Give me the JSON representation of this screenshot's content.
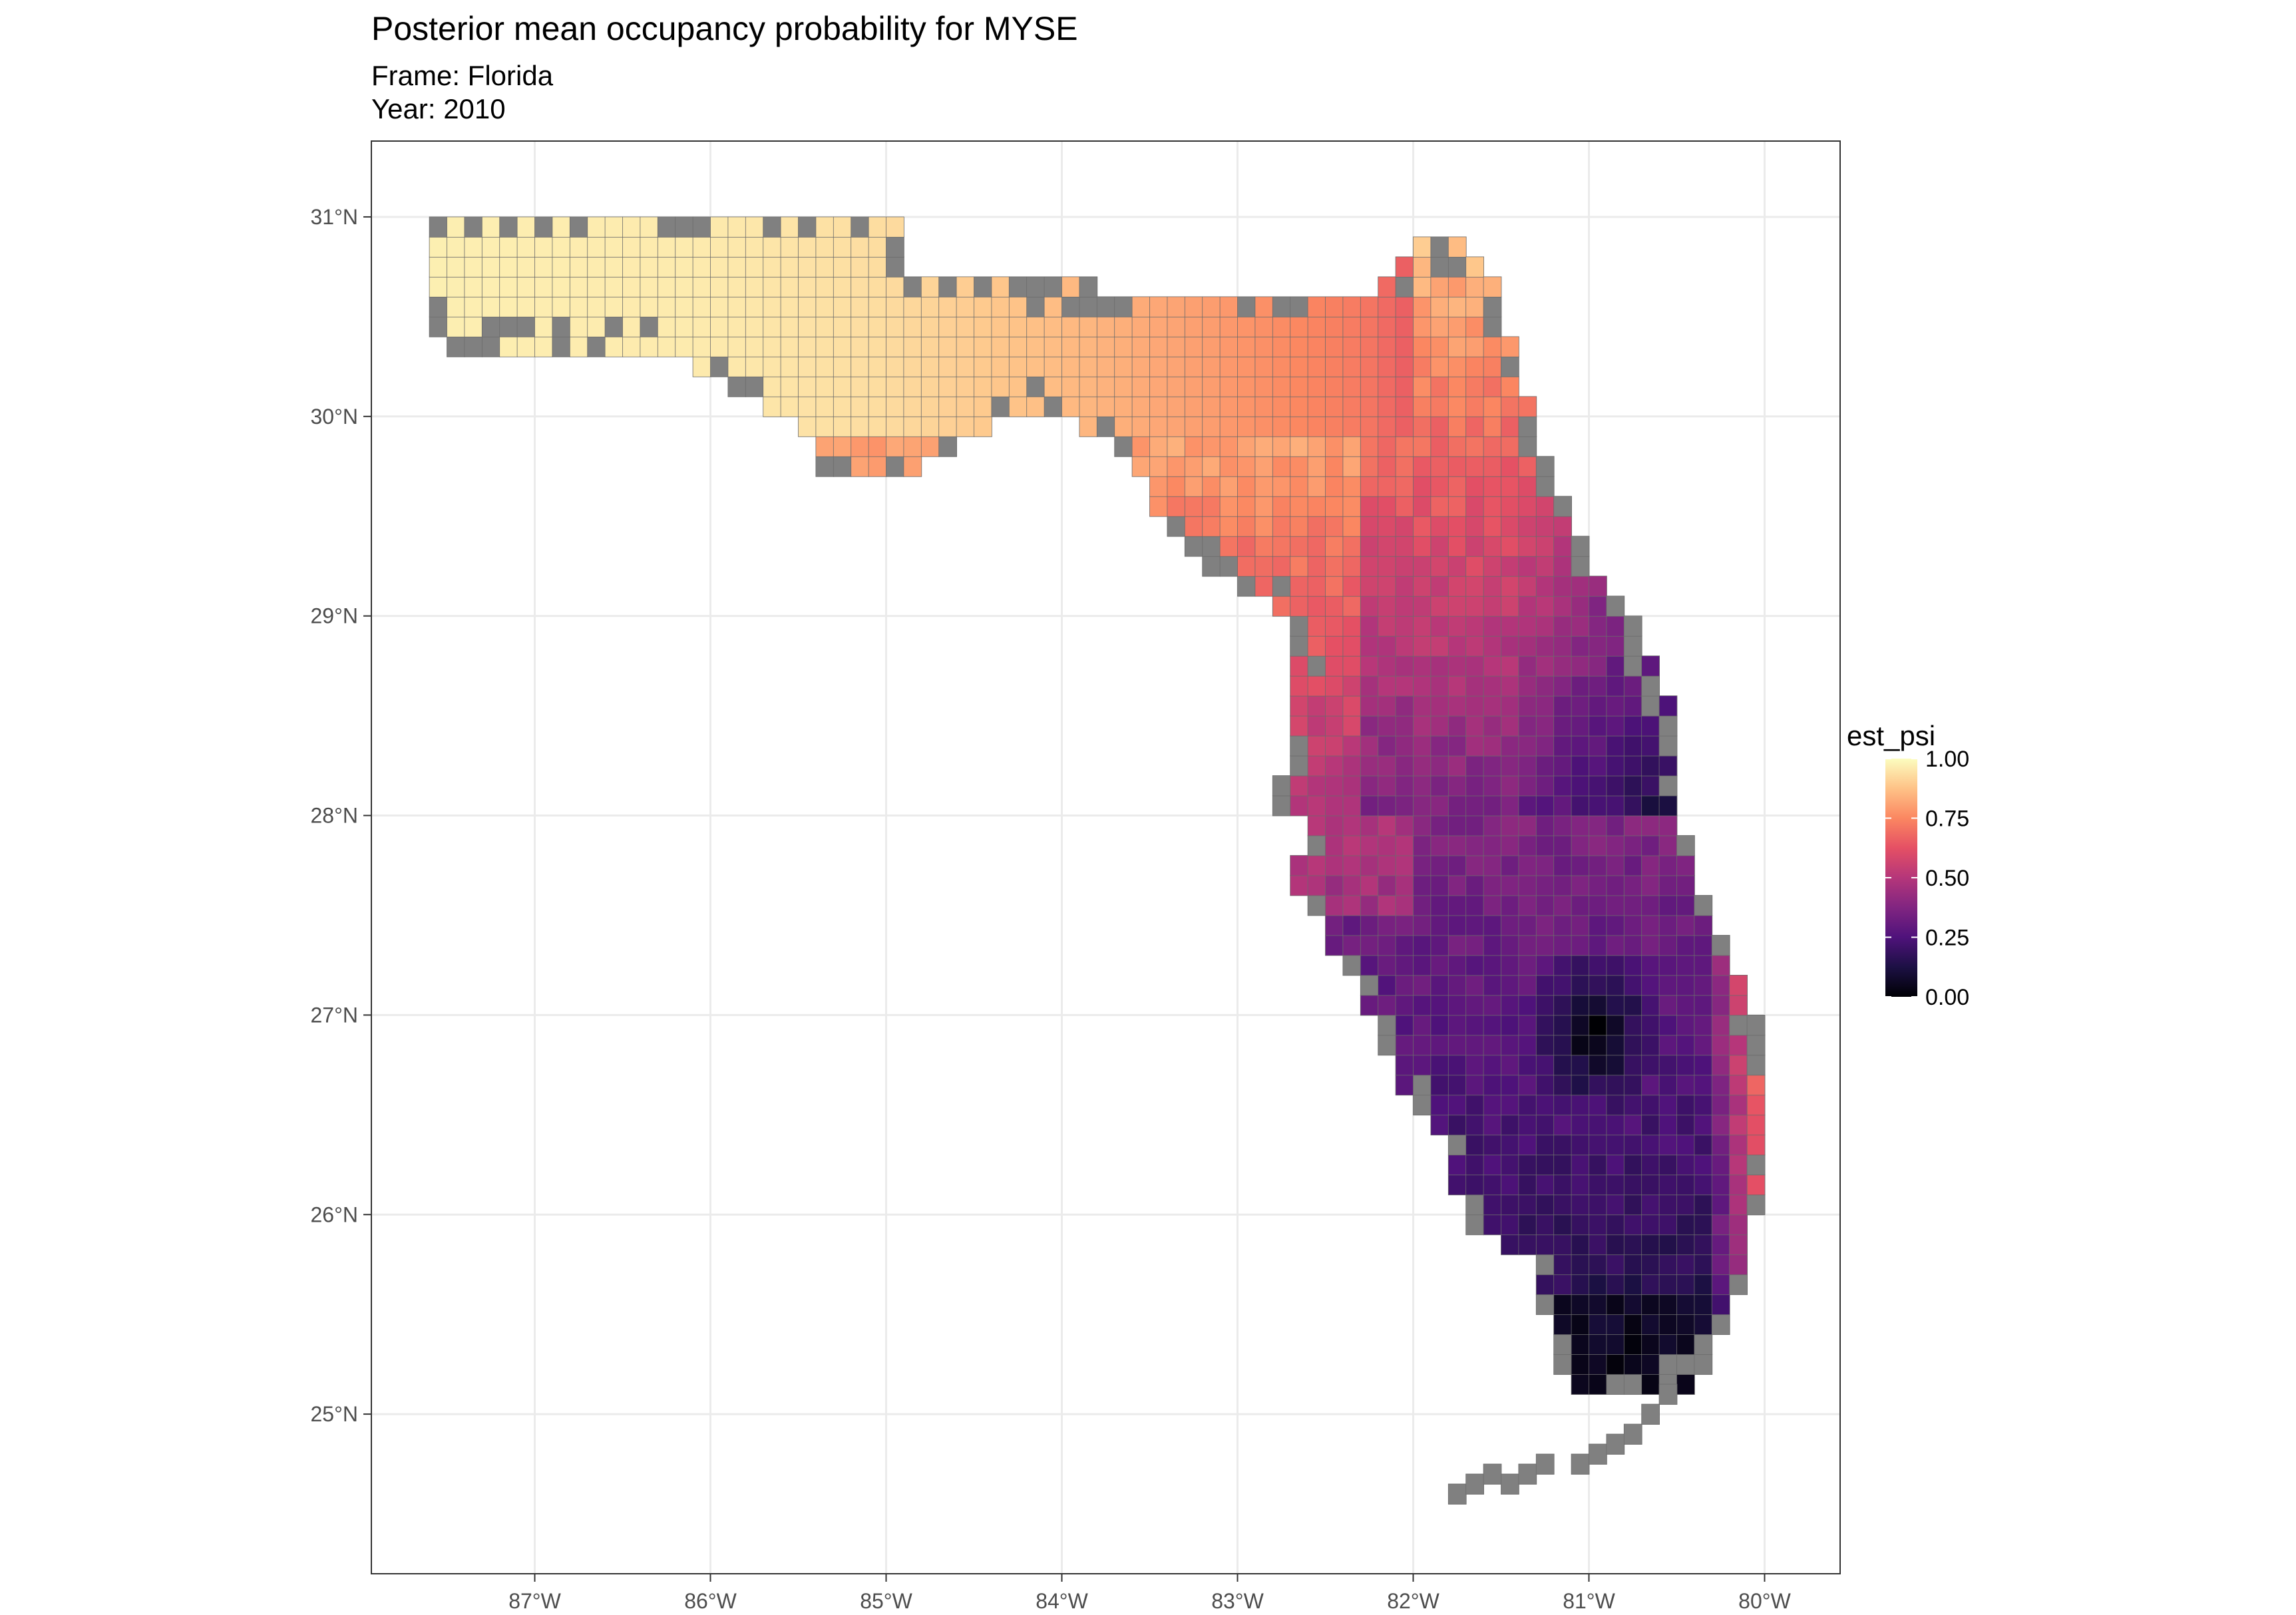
{
  "title": "Posterior mean occupancy probability for MYSE",
  "subtitle_frame": "Frame: Florida",
  "subtitle_year": "Year: 2010",
  "chart_data": {
    "type": "heatmap",
    "title": "Posterior mean occupancy probability for MYSE",
    "subtitle": [
      "Frame: Florida",
      "Year: 2010"
    ],
    "x_axis": {
      "ticks": [
        -87,
        -86,
        -85,
        -84,
        -83,
        -82,
        -81,
        -80
      ],
      "tick_labels": [
        "87°W",
        "86°W",
        "85°W",
        "84°W",
        "83°W",
        "82°W",
        "81°W",
        "80°W"
      ],
      "range": [
        -87.93,
        -79.57
      ]
    },
    "y_axis": {
      "ticks": [
        25,
        26,
        27,
        28,
        29,
        30,
        31
      ],
      "tick_labels": [
        "25°N",
        "26°N",
        "27°N",
        "28°N",
        "29°N",
        "30°N",
        "31°N"
      ],
      "range": [
        24.2,
        31.38
      ]
    },
    "grid": true,
    "legend": {
      "title": "est_psi",
      "position": "right",
      "breaks": [
        0,
        0.25,
        0.5,
        0.75,
        1
      ],
      "labels": [
        "0.00",
        "0.25",
        "0.50",
        "0.75",
        "1.00"
      ],
      "palette": "magma"
    },
    "cell_size_deg": 0.1,
    "na_color": "#808080",
    "panhandle_estimate": {
      "lon_range": [
        -87.6,
        -84.0
      ],
      "est_psi_range": [
        0.85,
        1.0
      ]
    },
    "big_bend_estimate": {
      "lon_range": [
        -84.0,
        -82.0
      ],
      "est_psi_range": [
        0.75,
        0.85
      ]
    },
    "northeast_estimate": {
      "est_psi_range": [
        0.35,
        0.7
      ]
    },
    "central_estimate": {
      "est_psi_range": [
        0.1,
        0.5
      ]
    },
    "lake_okeechobee_region": {
      "center": [
        -80.98,
        26.95
      ],
      "est_psi": 0.0
    },
    "south_estimate": {
      "est_psi_range": [
        0.0,
        0.15
      ]
    }
  }
}
